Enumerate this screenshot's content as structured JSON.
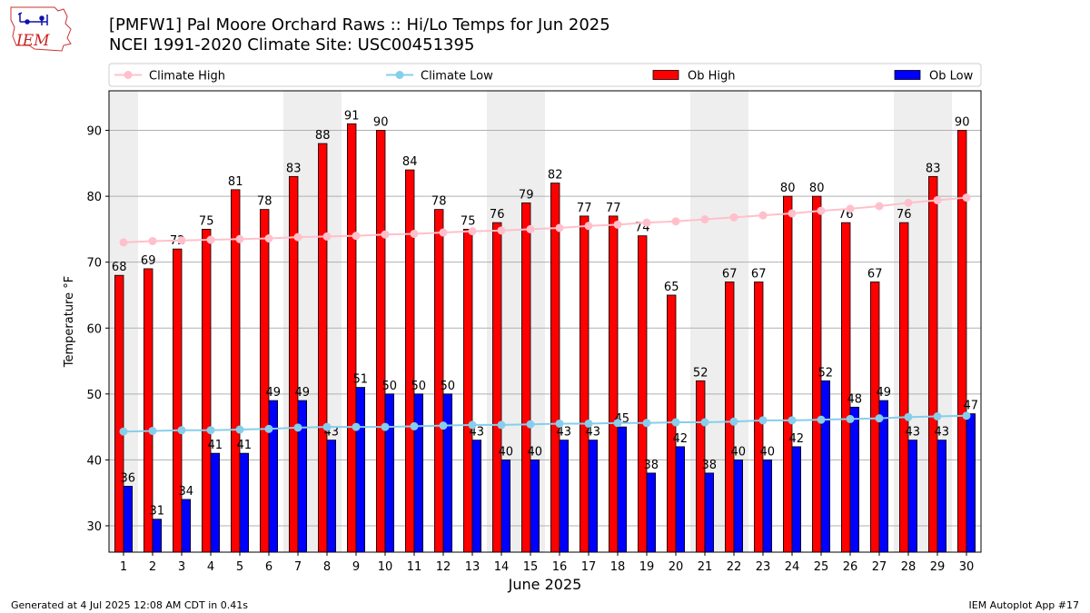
{
  "header": {
    "title_line1": "[PMFW1] Pal Moore Orchard Raws :: Hi/Lo Temps for Jun 2025",
    "title_line2": "NCEI 1991-2020 Climate Site: USC00451395"
  },
  "logo": {
    "text": "IEM"
  },
  "footer": {
    "generated": "Generated at 4 Jul 2025 12:08 AM CDT in 0.41s",
    "app": "IEM Autoplot App #17"
  },
  "colors": {
    "ob_high": "#ff0000",
    "ob_low": "#0000ff",
    "climate_high": "#ffc0cb",
    "climate_low": "#87ceeb",
    "weekend_band": "#eeeeee"
  },
  "chart_data": {
    "type": "bar",
    "xlabel": "June 2025",
    "ylabel": "Temperature °F",
    "ylim": [
      26,
      96
    ],
    "yticks": [
      30,
      40,
      50,
      60,
      70,
      80,
      90
    ],
    "grid": true,
    "legend_placement": "top",
    "categories": [
      "1",
      "2",
      "3",
      "4",
      "5",
      "6",
      "7",
      "8",
      "9",
      "10",
      "11",
      "12",
      "13",
      "14",
      "15",
      "16",
      "17",
      "18",
      "19",
      "20",
      "21",
      "22",
      "23",
      "24",
      "25",
      "26",
      "27",
      "28",
      "29",
      "30"
    ],
    "shaded_days": [
      1,
      7,
      8,
      14,
      15,
      21,
      22,
      28,
      29
    ],
    "series": [
      {
        "name": "Climate High",
        "kind": "line",
        "values": [
          73.0,
          73.2,
          73.3,
          73.4,
          73.5,
          73.6,
          73.8,
          73.9,
          74.0,
          74.2,
          74.3,
          74.5,
          74.7,
          74.8,
          75.0,
          75.2,
          75.5,
          75.7,
          76.0,
          76.2,
          76.5,
          76.8,
          77.1,
          77.4,
          77.8,
          78.1,
          78.5,
          79.0,
          79.4,
          79.8
        ]
      },
      {
        "name": "Climate Low",
        "kind": "line",
        "values": [
          44.3,
          44.4,
          44.5,
          44.5,
          44.6,
          44.7,
          44.9,
          45.0,
          45.0,
          45.0,
          45.1,
          45.2,
          45.3,
          45.3,
          45.4,
          45.5,
          45.5,
          45.6,
          45.6,
          45.7,
          45.7,
          45.8,
          46.0,
          46.0,
          46.1,
          46.2,
          46.3,
          46.5,
          46.6,
          46.7
        ]
      },
      {
        "name": "Ob High",
        "kind": "bar",
        "values": [
          68,
          69,
          72,
          75,
          81,
          78,
          83,
          88,
          91,
          90,
          84,
          78,
          75,
          76,
          79,
          82,
          77,
          77,
          74,
          65,
          52,
          67,
          67,
          80,
          80,
          76,
          67,
          76,
          83,
          90
        ]
      },
      {
        "name": "Ob Low",
        "kind": "bar",
        "values": [
          36,
          31,
          34,
          41,
          41,
          49,
          49,
          43,
          51,
          50,
          50,
          50,
          43,
          40,
          40,
          43,
          43,
          45,
          38,
          42,
          38,
          40,
          40,
          42,
          52,
          48,
          49,
          43,
          43,
          47
        ]
      }
    ]
  }
}
